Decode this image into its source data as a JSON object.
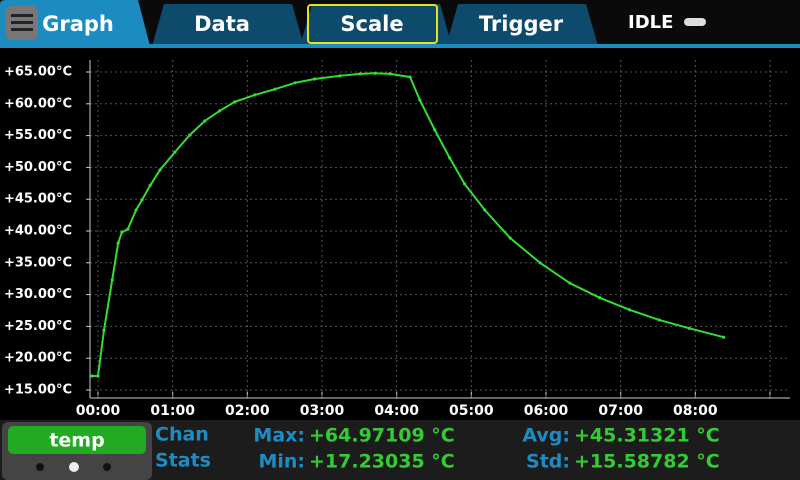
{
  "tabs": [
    "Graph",
    "Data",
    "Scale",
    "Trigger"
  ],
  "status": "IDLE",
  "chart_data": {
    "type": "line",
    "x": [
      -0.08,
      0,
      0.08,
      0.19,
      0.27,
      0.32,
      0.4,
      0.51,
      0.59,
      0.7,
      0.83,
      1.03,
      1.23,
      1.43,
      1.63,
      1.83,
      2.1,
      2.37,
      2.64,
      2.9,
      3.24,
      3.51,
      3.71,
      3.91,
      4.18,
      4.31,
      4.51,
      4.71,
      4.91,
      5.18,
      5.52,
      5.92,
      6.32,
      6.72,
      7.12,
      7.52,
      7.92,
      8.38
    ],
    "series": [
      {
        "name": "temp",
        "color": "#33dd33",
        "values": [
          17.2,
          17.2,
          24.4,
          32.3,
          38.1,
          39.8,
          40.3,
          43.3,
          44.9,
          47.2,
          49.6,
          52.4,
          55.1,
          57.3,
          58.9,
          60.3,
          61.4,
          62.3,
          63.3,
          63.9,
          64.4,
          64.7,
          64.8,
          64.7,
          64.2,
          60.6,
          55.9,
          51.5,
          47.4,
          43.3,
          38.9,
          35.0,
          31.8,
          29.5,
          27.6,
          26.0,
          24.7,
          23.3
        ]
      }
    ],
    "xlim": [
      0,
      9
    ],
    "ylim": [
      15,
      65
    ],
    "xticks": [
      {
        "value": 0,
        "label": "00:00"
      },
      {
        "value": 1,
        "label": "01:00"
      },
      {
        "value": 2,
        "label": "02:00"
      },
      {
        "value": 3,
        "label": "03:00"
      },
      {
        "value": 4,
        "label": "04:00"
      },
      {
        "value": 5,
        "label": "05:00"
      },
      {
        "value": 6,
        "label": "06:00"
      },
      {
        "value": 7,
        "label": "07:00"
      },
      {
        "value": 8,
        "label": "08:00"
      },
      {
        "value": 9,
        "label": null
      }
    ],
    "yticks": [
      {
        "value": 15,
        "label": "+15.00°C"
      },
      {
        "value": 20,
        "label": "+20.00°C"
      },
      {
        "value": 25,
        "label": "+25.00°C"
      },
      {
        "value": 30,
        "label": "+30.00°C"
      },
      {
        "value": 35,
        "label": "+35.00°C"
      },
      {
        "value": 40,
        "label": "+40.00°C"
      },
      {
        "value": 45,
        "label": "+45.00°C"
      },
      {
        "value": 50,
        "label": "+50.00°C"
      },
      {
        "value": 55,
        "label": "+55.00°C"
      },
      {
        "value": 60,
        "label": "+60.00°C"
      },
      {
        "value": 65,
        "label": "+65.00°C"
      }
    ],
    "grid": true
  },
  "footer": {
    "channel": "temp",
    "heading": [
      "Chan",
      "Stats"
    ],
    "stats": [
      [
        "Max:",
        "+64.97109 °C"
      ],
      [
        "Min:",
        "+17.23035 °C"
      ],
      [
        "Avg:",
        "+45.31321 °C"
      ],
      [
        "Std:",
        "+15.58782 °C"
      ]
    ]
  }
}
